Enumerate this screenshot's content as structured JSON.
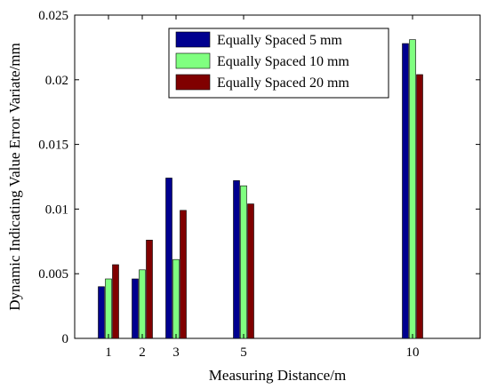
{
  "chart_data": {
    "type": "bar",
    "x": [
      1,
      2,
      3,
      5,
      10
    ],
    "xticks": [
      "1",
      "2",
      "3",
      "5",
      "10"
    ],
    "xlim": [
      0,
      12
    ],
    "ylim": [
      0,
      0.025
    ],
    "yticks": [
      "0",
      "0.005",
      "0.01",
      "0.015",
      "0.02",
      "0.025"
    ],
    "xlabel": "Measuring Distance/m",
    "ylabel": "Dynamic Indicating Value  Error Variate/mm",
    "grid": false,
    "legend_position": "top-right",
    "series": [
      {
        "name": "Equally Spaced 5 mm",
        "color": "#00008F",
        "values": [
          0.004,
          0.0046,
          0.0124,
          0.0122,
          0.0228
        ]
      },
      {
        "name": "Equally Spaced 10 mm",
        "color": "#80FF80",
        "values": [
          0.0046,
          0.0053,
          0.0061,
          0.0118,
          0.0231
        ]
      },
      {
        "name": "Equally Spaced 20 mm",
        "color": "#800000",
        "values": [
          0.0057,
          0.0076,
          0.0099,
          0.0104,
          0.0204
        ]
      }
    ]
  }
}
